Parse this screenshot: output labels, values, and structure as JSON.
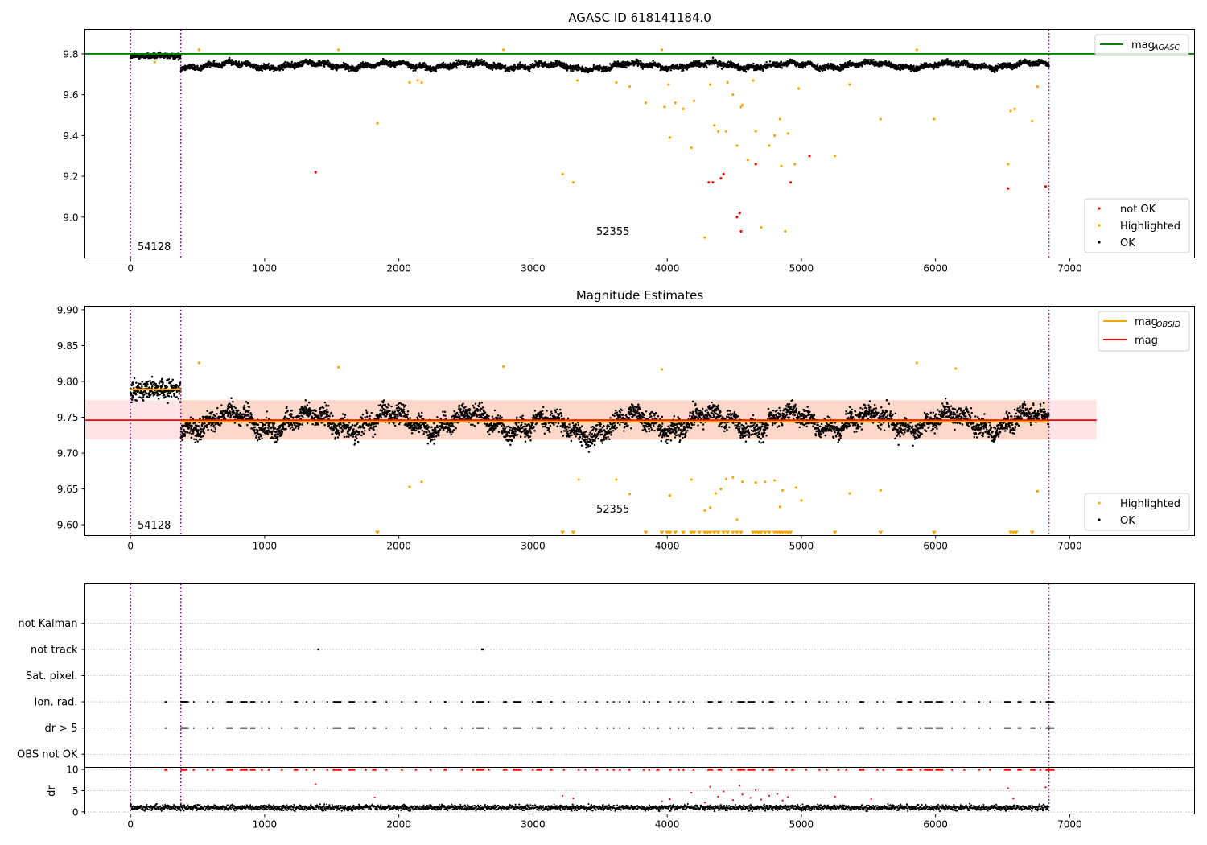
{
  "chart_data": [
    {
      "type": "scatter",
      "title": "AGASC ID 618141184.0",
      "xlim": [
        -340,
        7930
      ],
      "ylim": [
        8.8,
        9.92
      ],
      "xticks": [
        0,
        1000,
        2000,
        3000,
        4000,
        5000,
        6000,
        7000
      ],
      "yticks": [
        9.0,
        9.2,
        9.4,
        9.6,
        9.8
      ],
      "ytick_labels": [
        "9.0",
        "9.2",
        "9.4",
        "9.6",
        "9.8"
      ],
      "vlines": [
        0,
        375,
        6845
      ],
      "hlines": [
        {
          "name": "mag",
          "subscript": "AGASC",
          "y": 9.8,
          "color": "#008000"
        }
      ],
      "annotations": [
        {
          "text": "54128",
          "x": 50,
          "y": 8.835
        },
        {
          "text": "52355",
          "x": 3480,
          "y": 8.915
        }
      ],
      "legend_position": "lower-right",
      "legend_hline_position": "upper-right",
      "series": [
        {
          "name": "not OK",
          "color": "#ff0000",
          "x": [
            1380,
            4310,
            4340,
            4400,
            4420,
            4520,
            4540,
            4550,
            4660,
            4920,
            5060,
            6540,
            6820
          ],
          "y": [
            9.22,
            9.17,
            9.17,
            9.19,
            9.21,
            9.0,
            9.02,
            8.93,
            9.26,
            9.17,
            9.3,
            9.14,
            9.15
          ]
        },
        {
          "name": "Highlighted",
          "color": "#ffa500",
          "x": [
            180,
            510,
            1550,
            1840,
            2080,
            2140,
            2170,
            2780,
            3220,
            3300,
            3330,
            3620,
            3720,
            3840,
            3960,
            3980,
            4010,
            4020,
            4060,
            4120,
            4180,
            4200,
            4280,
            4320,
            4350,
            4380,
            4440,
            4450,
            4490,
            4520,
            4550,
            4560,
            4600,
            4640,
            4660,
            4700,
            4760,
            4800,
            4840,
            4850,
            4880,
            4900,
            4950,
            4980,
            5250,
            5360,
            5590,
            5860,
            5990,
            6540,
            6560,
            6590,
            6720,
            6760
          ],
          "y": [
            9.76,
            9.82,
            9.82,
            9.46,
            9.66,
            9.67,
            9.66,
            9.82,
            9.21,
            9.17,
            9.67,
            9.66,
            9.64,
            9.56,
            9.82,
            9.54,
            9.65,
            9.39,
            9.56,
            9.53,
            9.34,
            9.57,
            8.9,
            9.65,
            9.45,
            9.42,
            9.42,
            9.66,
            9.6,
            9.35,
            9.54,
            9.55,
            9.28,
            9.67,
            9.42,
            8.95,
            9.35,
            9.4,
            9.48,
            9.25,
            8.93,
            9.41,
            9.26,
            9.63,
            9.3,
            9.65,
            9.48,
            9.82,
            9.48,
            9.26,
            9.52,
            9.53,
            9.47,
            9.64
          ],
          "size": 2
        },
        {
          "name": "OK",
          "color": "#000000",
          "generated": "dense"
        }
      ]
    },
    {
      "type": "scatter",
      "title": "Magnitude Estimates",
      "xlim": [
        -340,
        7930
      ],
      "ylim": [
        9.585,
        9.905
      ],
      "xticks": [
        0,
        1000,
        2000,
        3000,
        4000,
        5000,
        6000,
        7000
      ],
      "yticks": [
        9.6,
        9.65,
        9.7,
        9.75,
        9.8,
        9.85,
        9.9
      ],
      "ytick_labels": [
        "9.60",
        "9.65",
        "9.70",
        "9.75",
        "9.80",
        "9.85",
        "9.90"
      ],
      "vlines": [
        0,
        375,
        6845
      ],
      "annotations": [
        {
          "text": "54128",
          "x": 50,
          "y": 9.597
        },
        {
          "text": "52355",
          "x": 3480,
          "y": 9.62
        }
      ],
      "hlines": [
        {
          "name": "mag",
          "subscript": "OBSID",
          "color": "#ffa500",
          "segments": [
            [
              0,
              375,
              9.789
            ],
            [
              375,
              6845,
              9.744
            ]
          ]
        },
        {
          "name": "mag",
          "color": "#ff0000",
          "y": 9.746,
          "band": [
            9.719,
            9.774
          ],
          "x": [
            -340,
            7200
          ]
        }
      ],
      "legend_position": "lower-right",
      "legend_hline_position": "upper-right",
      "series": [
        {
          "name": "Highlighted",
          "color": "#ffa500",
          "x": [
            510,
            1550,
            2080,
            2170,
            2780,
            3340,
            3620,
            3720,
            3960,
            4020,
            4180,
            4280,
            4320,
            4360,
            4400,
            4440,
            4490,
            4520,
            4560,
            4660,
            4730,
            4800,
            4840,
            4860,
            4960,
            5000,
            5360,
            5590,
            5860,
            6150,
            6760
          ],
          "y": [
            9.826,
            9.82,
            9.653,
            9.66,
            9.821,
            9.663,
            9.663,
            9.643,
            9.817,
            9.641,
            9.663,
            9.62,
            9.624,
            9.644,
            9.65,
            9.664,
            9.666,
            9.607,
            9.66,
            9.659,
            9.66,
            9.662,
            9.625,
            9.648,
            9.652,
            9.634,
            9.644,
            9.648,
            9.826,
            9.818,
            9.647
          ]
        },
        {
          "name": "Highlighted (below range)",
          "marker": "triangle-down",
          "color": "#ffa500",
          "x": [
            1840,
            3220,
            3300,
            3840,
            3960,
            4000,
            4020,
            4060,
            4120,
            4180,
            4200,
            4240,
            4280,
            4300,
            4320,
            4350,
            4380,
            4420,
            4450,
            4490,
            4520,
            4550,
            4640,
            4660,
            4680,
            4700,
            4730,
            4760,
            4800,
            4820,
            4840,
            4860,
            4880,
            4900,
            4920,
            5250,
            5590,
            5990,
            6560,
            6580,
            6600,
            6720
          ],
          "y": 9.589
        },
        {
          "name": "OK",
          "color": "#000000",
          "generated": "dense"
        }
      ]
    },
    {
      "type": "scatter",
      "title": "",
      "xlim": [
        -340,
        7930
      ],
      "ylim": [
        -0.5,
        6.5
      ],
      "categories": [
        "OBS not OK",
        "dr > 5",
        "Ion. rad.",
        "Sat. pixel.",
        "not track",
        "not Kalman"
      ],
      "vlines": [
        0,
        375,
        6845
      ],
      "series": [
        {
          "name": "not track",
          "color": "#000000",
          "x": [
            1400,
            2620,
            2630
          ]
        },
        {
          "name": "Ion. rad.",
          "color": "#000000",
          "generated": "flags"
        },
        {
          "name": "dr > 5",
          "color": "#000000",
          "generated": "flags"
        }
      ]
    },
    {
      "type": "scatter",
      "title": "",
      "ylabel": "dr",
      "xlim": [
        -340,
        7930
      ],
      "ylim": [
        -0.5,
        10.5
      ],
      "xticks": [
        0,
        1000,
        2000,
        3000,
        4000,
        5000,
        6000,
        7000
      ],
      "yticks": [
        0,
        5,
        10
      ],
      "ytick_labels": [
        "0",
        "5",
        "10"
      ],
      "vlines": [
        0,
        375,
        6845
      ],
      "series": [
        {
          "name": "dr",
          "color": "#000000",
          "generated": "dense"
        },
        {
          "name": "dr > 5",
          "color": "#ff0000",
          "generated": "flags"
        }
      ]
    }
  ]
}
